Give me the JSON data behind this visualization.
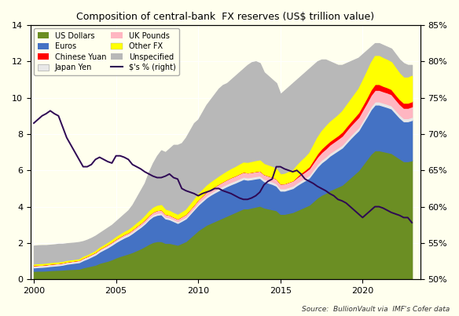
{
  "title": "Composition of central-bank  FX reserves (US$ trillion value)",
  "source": "Source:  BullionVault via  IMF's Cofer data",
  "background_color": "#ffffee",
  "years": [
    2000,
    2000.25,
    2000.5,
    2000.75,
    2001,
    2001.25,
    2001.5,
    2001.75,
    2002,
    2002.25,
    2002.5,
    2002.75,
    2003,
    2003.25,
    2003.5,
    2003.75,
    2004,
    2004.25,
    2004.5,
    2004.75,
    2005,
    2005.25,
    2005.5,
    2005.75,
    2006,
    2006.25,
    2006.5,
    2006.75,
    2007,
    2007.25,
    2007.5,
    2007.75,
    2008,
    2008.25,
    2008.5,
    2008.75,
    2009,
    2009.25,
    2009.5,
    2009.75,
    2010,
    2010.25,
    2010.5,
    2010.75,
    2011,
    2011.25,
    2011.5,
    2011.75,
    2012,
    2012.25,
    2012.5,
    2012.75,
    2013,
    2013.25,
    2013.5,
    2013.75,
    2014,
    2014.25,
    2014.5,
    2014.75,
    2015,
    2015.25,
    2015.5,
    2015.75,
    2016,
    2016.25,
    2016.5,
    2016.75,
    2017,
    2017.25,
    2017.5,
    2017.75,
    2018,
    2018.25,
    2018.5,
    2018.75,
    2019,
    2019.25,
    2019.5,
    2019.75,
    2020,
    2020.25,
    2020.5,
    2020.75,
    2021,
    2021.25,
    2021.5,
    2021.75,
    2022,
    2022.25,
    2022.5,
    2022.75,
    2023
  ],
  "us_dollars": [
    0.46,
    0.47,
    0.47,
    0.48,
    0.5,
    0.51,
    0.52,
    0.53,
    0.55,
    0.56,
    0.57,
    0.58,
    0.65,
    0.7,
    0.75,
    0.8,
    0.9,
    0.96,
    1.02,
    1.1,
    1.2,
    1.28,
    1.35,
    1.42,
    1.5,
    1.6,
    1.7,
    1.82,
    1.95,
    2.05,
    2.1,
    2.1,
    2.0,
    2.0,
    1.95,
    1.9,
    2.0,
    2.1,
    2.3,
    2.5,
    2.7,
    2.85,
    3.0,
    3.1,
    3.2,
    3.3,
    3.4,
    3.5,
    3.6,
    3.7,
    3.8,
    3.9,
    3.9,
    3.95,
    4.0,
    4.05,
    3.95,
    3.9,
    3.85,
    3.8,
    3.6,
    3.6,
    3.65,
    3.7,
    3.8,
    3.9,
    4.0,
    4.1,
    4.3,
    4.5,
    4.65,
    4.75,
    4.9,
    5.0,
    5.1,
    5.2,
    5.4,
    5.6,
    5.8,
    6.0,
    6.3,
    6.6,
    6.9,
    7.1,
    7.1,
    7.05,
    7.0,
    6.95,
    6.8,
    6.65,
    6.5,
    6.5,
    6.55
  ],
  "euros": [
    0.19,
    0.2,
    0.21,
    0.22,
    0.23,
    0.24,
    0.25,
    0.27,
    0.3,
    0.32,
    0.34,
    0.36,
    0.4,
    0.44,
    0.5,
    0.56,
    0.62,
    0.68,
    0.74,
    0.8,
    0.85,
    0.9,
    0.95,
    0.98,
    1.05,
    1.12,
    1.18,
    1.25,
    1.35,
    1.42,
    1.45,
    1.48,
    1.35,
    1.3,
    1.25,
    1.2,
    1.22,
    1.25,
    1.3,
    1.35,
    1.4,
    1.45,
    1.5,
    1.55,
    1.58,
    1.6,
    1.62,
    1.63,
    1.63,
    1.62,
    1.62,
    1.62,
    1.58,
    1.56,
    1.55,
    1.53,
    1.45,
    1.42,
    1.4,
    1.35,
    1.28,
    1.28,
    1.3,
    1.32,
    1.38,
    1.42,
    1.45,
    1.5,
    1.6,
    1.7,
    1.78,
    1.85,
    1.9,
    1.95,
    2.0,
    2.05,
    2.1,
    2.15,
    2.18,
    2.2,
    2.28,
    2.35,
    2.45,
    2.52,
    2.52,
    2.5,
    2.48,
    2.45,
    2.35,
    2.25,
    2.2,
    2.2,
    2.22
  ],
  "japan_yen": [
    0.08,
    0.08,
    0.08,
    0.08,
    0.08,
    0.08,
    0.08,
    0.08,
    0.08,
    0.08,
    0.08,
    0.08,
    0.09,
    0.09,
    0.09,
    0.09,
    0.1,
    0.1,
    0.1,
    0.1,
    0.1,
    0.1,
    0.1,
    0.1,
    0.1,
    0.1,
    0.1,
    0.1,
    0.1,
    0.1,
    0.1,
    0.1,
    0.1,
    0.1,
    0.1,
    0.1,
    0.1,
    0.1,
    0.1,
    0.1,
    0.12,
    0.12,
    0.12,
    0.12,
    0.12,
    0.13,
    0.13,
    0.13,
    0.13,
    0.13,
    0.13,
    0.13,
    0.13,
    0.13,
    0.13,
    0.13,
    0.13,
    0.13,
    0.13,
    0.13,
    0.13,
    0.13,
    0.13,
    0.13,
    0.13,
    0.14,
    0.14,
    0.14,
    0.15,
    0.15,
    0.15,
    0.15,
    0.15,
    0.15,
    0.15,
    0.15,
    0.16,
    0.16,
    0.16,
    0.16,
    0.17,
    0.17,
    0.17,
    0.17,
    0.17,
    0.17,
    0.17,
    0.17,
    0.17,
    0.17,
    0.17,
    0.17,
    0.17
  ],
  "uk_pounds": [
    0.04,
    0.04,
    0.04,
    0.04,
    0.04,
    0.04,
    0.04,
    0.04,
    0.04,
    0.04,
    0.04,
    0.04,
    0.05,
    0.05,
    0.05,
    0.05,
    0.06,
    0.06,
    0.07,
    0.07,
    0.08,
    0.08,
    0.09,
    0.09,
    0.1,
    0.11,
    0.12,
    0.13,
    0.14,
    0.15,
    0.16,
    0.16,
    0.15,
    0.15,
    0.14,
    0.14,
    0.15,
    0.15,
    0.16,
    0.17,
    0.18,
    0.19,
    0.2,
    0.21,
    0.22,
    0.23,
    0.24,
    0.25,
    0.26,
    0.26,
    0.27,
    0.27,
    0.27,
    0.27,
    0.27,
    0.27,
    0.26,
    0.26,
    0.26,
    0.26,
    0.26,
    0.27,
    0.28,
    0.29,
    0.3,
    0.32,
    0.34,
    0.36,
    0.38,
    0.4,
    0.42,
    0.44,
    0.46,
    0.47,
    0.48,
    0.5,
    0.52,
    0.54,
    0.55,
    0.57,
    0.58,
    0.6,
    0.62,
    0.64,
    0.64,
    0.63,
    0.63,
    0.62,
    0.6,
    0.58,
    0.57,
    0.57,
    0.58
  ],
  "chinese_yuan": [
    0.0,
    0.0,
    0.0,
    0.0,
    0.0,
    0.0,
    0.0,
    0.0,
    0.0,
    0.0,
    0.0,
    0.0,
    0.0,
    0.0,
    0.0,
    0.0,
    0.0,
    0.0,
    0.0,
    0.0,
    0.0,
    0.0,
    0.0,
    0.0,
    0.0,
    0.0,
    0.0,
    0.0,
    0.0,
    0.0,
    0.0,
    0.0,
    0.0,
    0.0,
    0.0,
    0.0,
    0.0,
    0.0,
    0.0,
    0.0,
    0.0,
    0.0,
    0.0,
    0.0,
    0.0,
    0.0,
    0.0,
    0.0,
    0.0,
    0.0,
    0.0,
    0.0,
    0.0,
    0.0,
    0.0,
    0.0,
    0.0,
    0.0,
    0.0,
    0.0,
    0.0,
    0.0,
    0.0,
    0.0,
    0.05,
    0.08,
    0.1,
    0.12,
    0.15,
    0.18,
    0.2,
    0.22,
    0.2,
    0.2,
    0.2,
    0.22,
    0.22,
    0.22,
    0.24,
    0.26,
    0.26,
    0.28,
    0.3,
    0.32,
    0.32,
    0.3,
    0.29,
    0.28,
    0.27,
    0.27,
    0.28,
    0.28,
    0.28
  ],
  "other_fx": [
    0.03,
    0.03,
    0.03,
    0.03,
    0.03,
    0.03,
    0.03,
    0.03,
    0.03,
    0.03,
    0.03,
    0.03,
    0.04,
    0.04,
    0.04,
    0.05,
    0.05,
    0.06,
    0.07,
    0.08,
    0.09,
    0.1,
    0.11,
    0.12,
    0.13,
    0.14,
    0.15,
    0.17,
    0.19,
    0.21,
    0.23,
    0.24,
    0.22,
    0.21,
    0.2,
    0.2,
    0.21,
    0.22,
    0.24,
    0.26,
    0.28,
    0.3,
    0.32,
    0.34,
    0.36,
    0.38,
    0.4,
    0.42,
    0.44,
    0.46,
    0.48,
    0.5,
    0.52,
    0.54,
    0.55,
    0.56,
    0.55,
    0.55,
    0.54,
    0.53,
    0.5,
    0.52,
    0.54,
    0.56,
    0.6,
    0.64,
    0.68,
    0.73,
    0.8,
    0.88,
    0.95,
    1.0,
    1.04,
    1.07,
    1.1,
    1.13,
    1.16,
    1.2,
    1.25,
    1.3,
    1.36,
    1.42,
    1.48,
    1.54,
    1.54,
    1.52,
    1.5,
    1.48,
    1.44,
    1.4,
    1.38,
    1.38,
    1.4
  ],
  "unspecified_total": [
    1.85,
    1.87,
    1.88,
    1.88,
    1.9,
    1.92,
    1.95,
    1.95,
    1.98,
    2.0,
    2.02,
    2.05,
    2.1,
    2.18,
    2.28,
    2.4,
    2.55,
    2.7,
    2.85,
    3.0,
    3.2,
    3.4,
    3.6,
    3.8,
    4.1,
    4.5,
    4.9,
    5.3,
    5.9,
    6.4,
    6.8,
    7.1,
    7.0,
    7.2,
    7.4,
    7.4,
    7.5,
    7.8,
    8.2,
    8.6,
    8.8,
    9.2,
    9.6,
    9.9,
    10.2,
    10.5,
    10.7,
    10.8,
    11.0,
    11.2,
    11.4,
    11.6,
    11.8,
    11.95,
    12.0,
    11.9,
    11.4,
    11.2,
    11.0,
    10.8,
    10.2,
    10.4,
    10.6,
    10.8,
    11.0,
    11.2,
    11.4,
    11.6,
    11.8,
    12.0,
    12.1,
    12.1,
    12.0,
    11.9,
    11.8,
    11.8,
    11.9,
    12.0,
    12.1,
    12.2,
    12.4,
    12.6,
    12.8,
    13.0,
    13.0,
    12.9,
    12.8,
    12.7,
    12.4,
    12.1,
    11.9,
    11.8,
    11.8
  ],
  "pct_dollars": [
    71.5,
    72.0,
    72.5,
    72.8,
    73.2,
    72.8,
    72.5,
    71.0,
    69.5,
    68.5,
    67.5,
    66.5,
    65.5,
    65.5,
    65.8,
    66.5,
    66.8,
    66.5,
    66.2,
    66.0,
    67.0,
    67.0,
    66.8,
    66.5,
    65.8,
    65.5,
    65.2,
    64.8,
    64.5,
    64.2,
    64.0,
    64.0,
    64.2,
    64.5,
    64.0,
    63.8,
    62.5,
    62.2,
    62.0,
    61.8,
    61.5,
    61.8,
    62.0,
    62.2,
    62.5,
    62.5,
    62.2,
    62.0,
    61.8,
    61.5,
    61.2,
    61.0,
    61.0,
    61.2,
    61.5,
    62.0,
    63.0,
    63.5,
    63.8,
    65.5,
    65.5,
    65.2,
    65.0,
    64.8,
    65.0,
    64.5,
    63.8,
    63.5,
    63.2,
    62.8,
    62.5,
    62.2,
    61.8,
    61.5,
    61.0,
    60.8,
    60.5,
    60.0,
    59.5,
    59.0,
    58.5,
    59.0,
    59.5,
    60.0,
    60.0,
    59.8,
    59.5,
    59.2,
    59.0,
    58.8,
    58.5,
    58.5,
    57.8
  ],
  "colors": {
    "us_dollars": "#6b8e23",
    "euros": "#4472c4",
    "japan_yen": "#e8e8e8",
    "uk_pounds": "#ffb6c1",
    "chinese_yuan": "#ff0000",
    "other_fx": "#ffff00",
    "unspecified": "#b8b8b8",
    "pct_line": "#2e0854"
  },
  "ylim_left": [
    0,
    14
  ],
  "ylim_right": [
    50,
    85
  ],
  "yticks_left": [
    0,
    2,
    4,
    6,
    8,
    10,
    12,
    14
  ],
  "yticks_right": [
    50,
    55,
    60,
    65,
    70,
    75,
    80,
    85
  ],
  "xlim": [
    1999.8,
    2023.5
  ]
}
